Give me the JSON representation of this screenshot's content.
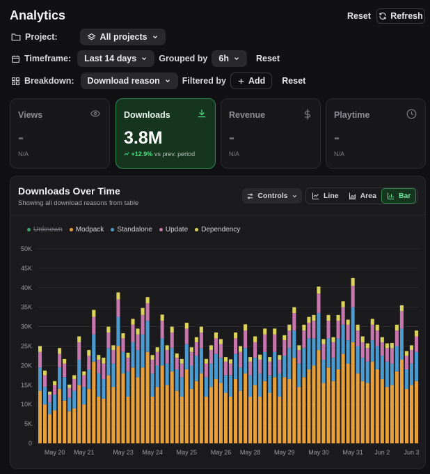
{
  "header": {
    "title": "Analytics",
    "reset_label": "Reset",
    "refresh_label": "Refresh"
  },
  "filters": {
    "project_label": "Project:",
    "project_value": "All projects",
    "timeframe_label": "Timeframe:",
    "timeframe_value": "Last 14 days",
    "grouped_by_label": "Grouped by",
    "grouped_by_value": "6h",
    "timeframe_reset": "Reset",
    "breakdown_label": "Breakdown:",
    "breakdown_value": "Download reason",
    "filtered_by_label": "Filtered by",
    "add_label": "Add",
    "breakdown_reset": "Reset"
  },
  "cards": [
    {
      "title": "Views",
      "value": "-",
      "note": "N/A",
      "icon": "eye-icon"
    },
    {
      "title": "Downloads",
      "value": "3.8M",
      "change": "+12.9%",
      "change_suffix": "vs prev. period",
      "icon": "download-icon"
    },
    {
      "title": "Revenue",
      "value": "-",
      "note": "N/A",
      "icon": "dollar-icon"
    },
    {
      "title": "Playtime",
      "value": "-",
      "note": "N/A",
      "icon": "clock-icon"
    }
  ],
  "panel": {
    "title": "Downloads Over Time",
    "subtitle": "Showing all download reasons from table",
    "controls_label": "Controls",
    "view_options": [
      "Line",
      "Area",
      "Bar"
    ],
    "active_view": "Bar"
  },
  "colors": {
    "accent": "#2f8a4a",
    "unknown": "#3aa86b",
    "modpack": "#e8a13a",
    "standalone": "#4b9bd0",
    "update": "#c776ae",
    "dependency": "#dcd35c"
  },
  "chart_data": {
    "type": "bar",
    "stacked": true,
    "ylim": [
      0,
      50000
    ],
    "y_ticks": [
      "0",
      "5K",
      "10K",
      "15K",
      "20K",
      "25K",
      "30K",
      "35K",
      "40K",
      "45K",
      "50K"
    ],
    "x_tick_labels": [
      "May 20",
      "May 21",
      "May 23",
      "May 24",
      "May 25",
      "May 26",
      "May 28",
      "May 29",
      "May 30",
      "May 31",
      "Jun 2",
      "Jun 3"
    ],
    "x_tick_bar_index": [
      3,
      9,
      17,
      23,
      30,
      37,
      43,
      50,
      57,
      64,
      70,
      76
    ],
    "legend": [
      {
        "name": "Unknown",
        "hidden": true
      },
      {
        "name": "Modpack"
      },
      {
        "name": "Standalone"
      },
      {
        "name": "Update"
      },
      {
        "name": "Dependency"
      }
    ],
    "grid": true,
    "series": [
      {
        "name": "Modpack",
        "values": [
          13500,
          10000,
          7500,
          8500,
          14000,
          11000,
          8200,
          9000,
          15000,
          10000,
          14000,
          21000,
          12000,
          11500,
          17500,
          14500,
          25000,
          18000,
          12000,
          19500,
          17000,
          19500,
          23500,
          12000,
          14500,
          20000,
          15000,
          18500,
          13500,
          12000,
          19000,
          14000,
          16000,
          18000,
          12000,
          14500,
          16500,
          15500,
          13000,
          12000,
          16500,
          13500,
          18000,
          12000,
          15000,
          12000,
          16000,
          13000,
          17000,
          12000,
          17000,
          16500,
          22000,
          14500,
          17000,
          19000,
          20000,
          24000,
          15500,
          19500,
          16000,
          19000,
          23000,
          20500,
          26000,
          18000,
          16000,
          15500,
          21000,
          19000,
          16500,
          14500,
          15000,
          18500,
          21500,
          14000,
          15000,
          16000
        ]
      },
      {
        "name": "Standalone",
        "values": [
          6000,
          4500,
          3000,
          4000,
          5500,
          6000,
          3500,
          4500,
          6500,
          4500,
          5000,
          7000,
          6000,
          5000,
          7000,
          6000,
          7500,
          5500,
          6500,
          6500,
          7000,
          8500,
          8000,
          6000,
          5500,
          7000,
          5500,
          6000,
          5500,
          5000,
          6500,
          6000,
          6500,
          6500,
          5000,
          6000,
          6500,
          6500,
          4500,
          5500,
          6500,
          6000,
          6500,
          5500,
          7000,
          6000,
          7500,
          4500,
          6500,
          6000,
          5500,
          8000,
          7000,
          6000,
          7500,
          8000,
          7000,
          9500,
          6000,
          7500,
          6000,
          8000,
          7500,
          6000,
          9000,
          7000,
          6000,
          5500,
          5500,
          6000,
          6000,
          6500,
          5500,
          6500,
          8000,
          5000,
          5500,
          7500
        ]
      },
      {
        "name": "Update",
        "values": [
          4000,
          3000,
          2000,
          2500,
          3500,
          3500,
          2500,
          3000,
          4500,
          3000,
          3500,
          4500,
          3500,
          4000,
          4000,
          3500,
          4500,
          3500,
          3500,
          4500,
          4000,
          5000,
          4500,
          3500,
          3500,
          4500,
          3500,
          4000,
          3000,
          3500,
          4000,
          3500,
          3500,
          4000,
          3500,
          3500,
          4000,
          3500,
          3500,
          3000,
          4000,
          4000,
          4500,
          3500,
          4000,
          3500,
          4500,
          3500,
          4500,
          3500,
          4000,
          4500,
          4500,
          3500,
          4500,
          4000,
          4500,
          5000,
          4000,
          4500,
          4000,
          4500,
          4500,
          4000,
          5500,
          4000,
          4000,
          3500,
          4000,
          4000,
          3500,
          3500,
          4000,
          4000,
          4500,
          3500,
          3500,
          4000
        ]
      },
      {
        "name": "Dependency",
        "values": [
          1500,
          1200,
          800,
          1000,
          1500,
          1200,
          900,
          1000,
          1500,
          1000,
          1500,
          1800,
          1200,
          1500,
          1500,
          1200,
          1800,
          1300,
          1300,
          1500,
          1500,
          1800,
          1600,
          1200,
          1200,
          1600,
          1200,
          1500,
          1100,
          1200,
          1500,
          1200,
          1300,
          1500,
          1200,
          1200,
          1500,
          1300,
          1200,
          1100,
          1500,
          1500,
          1600,
          1200,
          1500,
          1300,
          1500,
          1200,
          1500,
          1200,
          1300,
          1500,
          1500,
          1200,
          1500,
          1500,
          1500,
          1800,
          1300,
          1500,
          1300,
          1500,
          1500,
          1300,
          2000,
          1500,
          1500,
          1200,
          1500,
          1500,
          1300,
          1200,
          1300,
          1500,
          1500,
          1200,
          1200,
          1500
        ]
      }
    ]
  }
}
